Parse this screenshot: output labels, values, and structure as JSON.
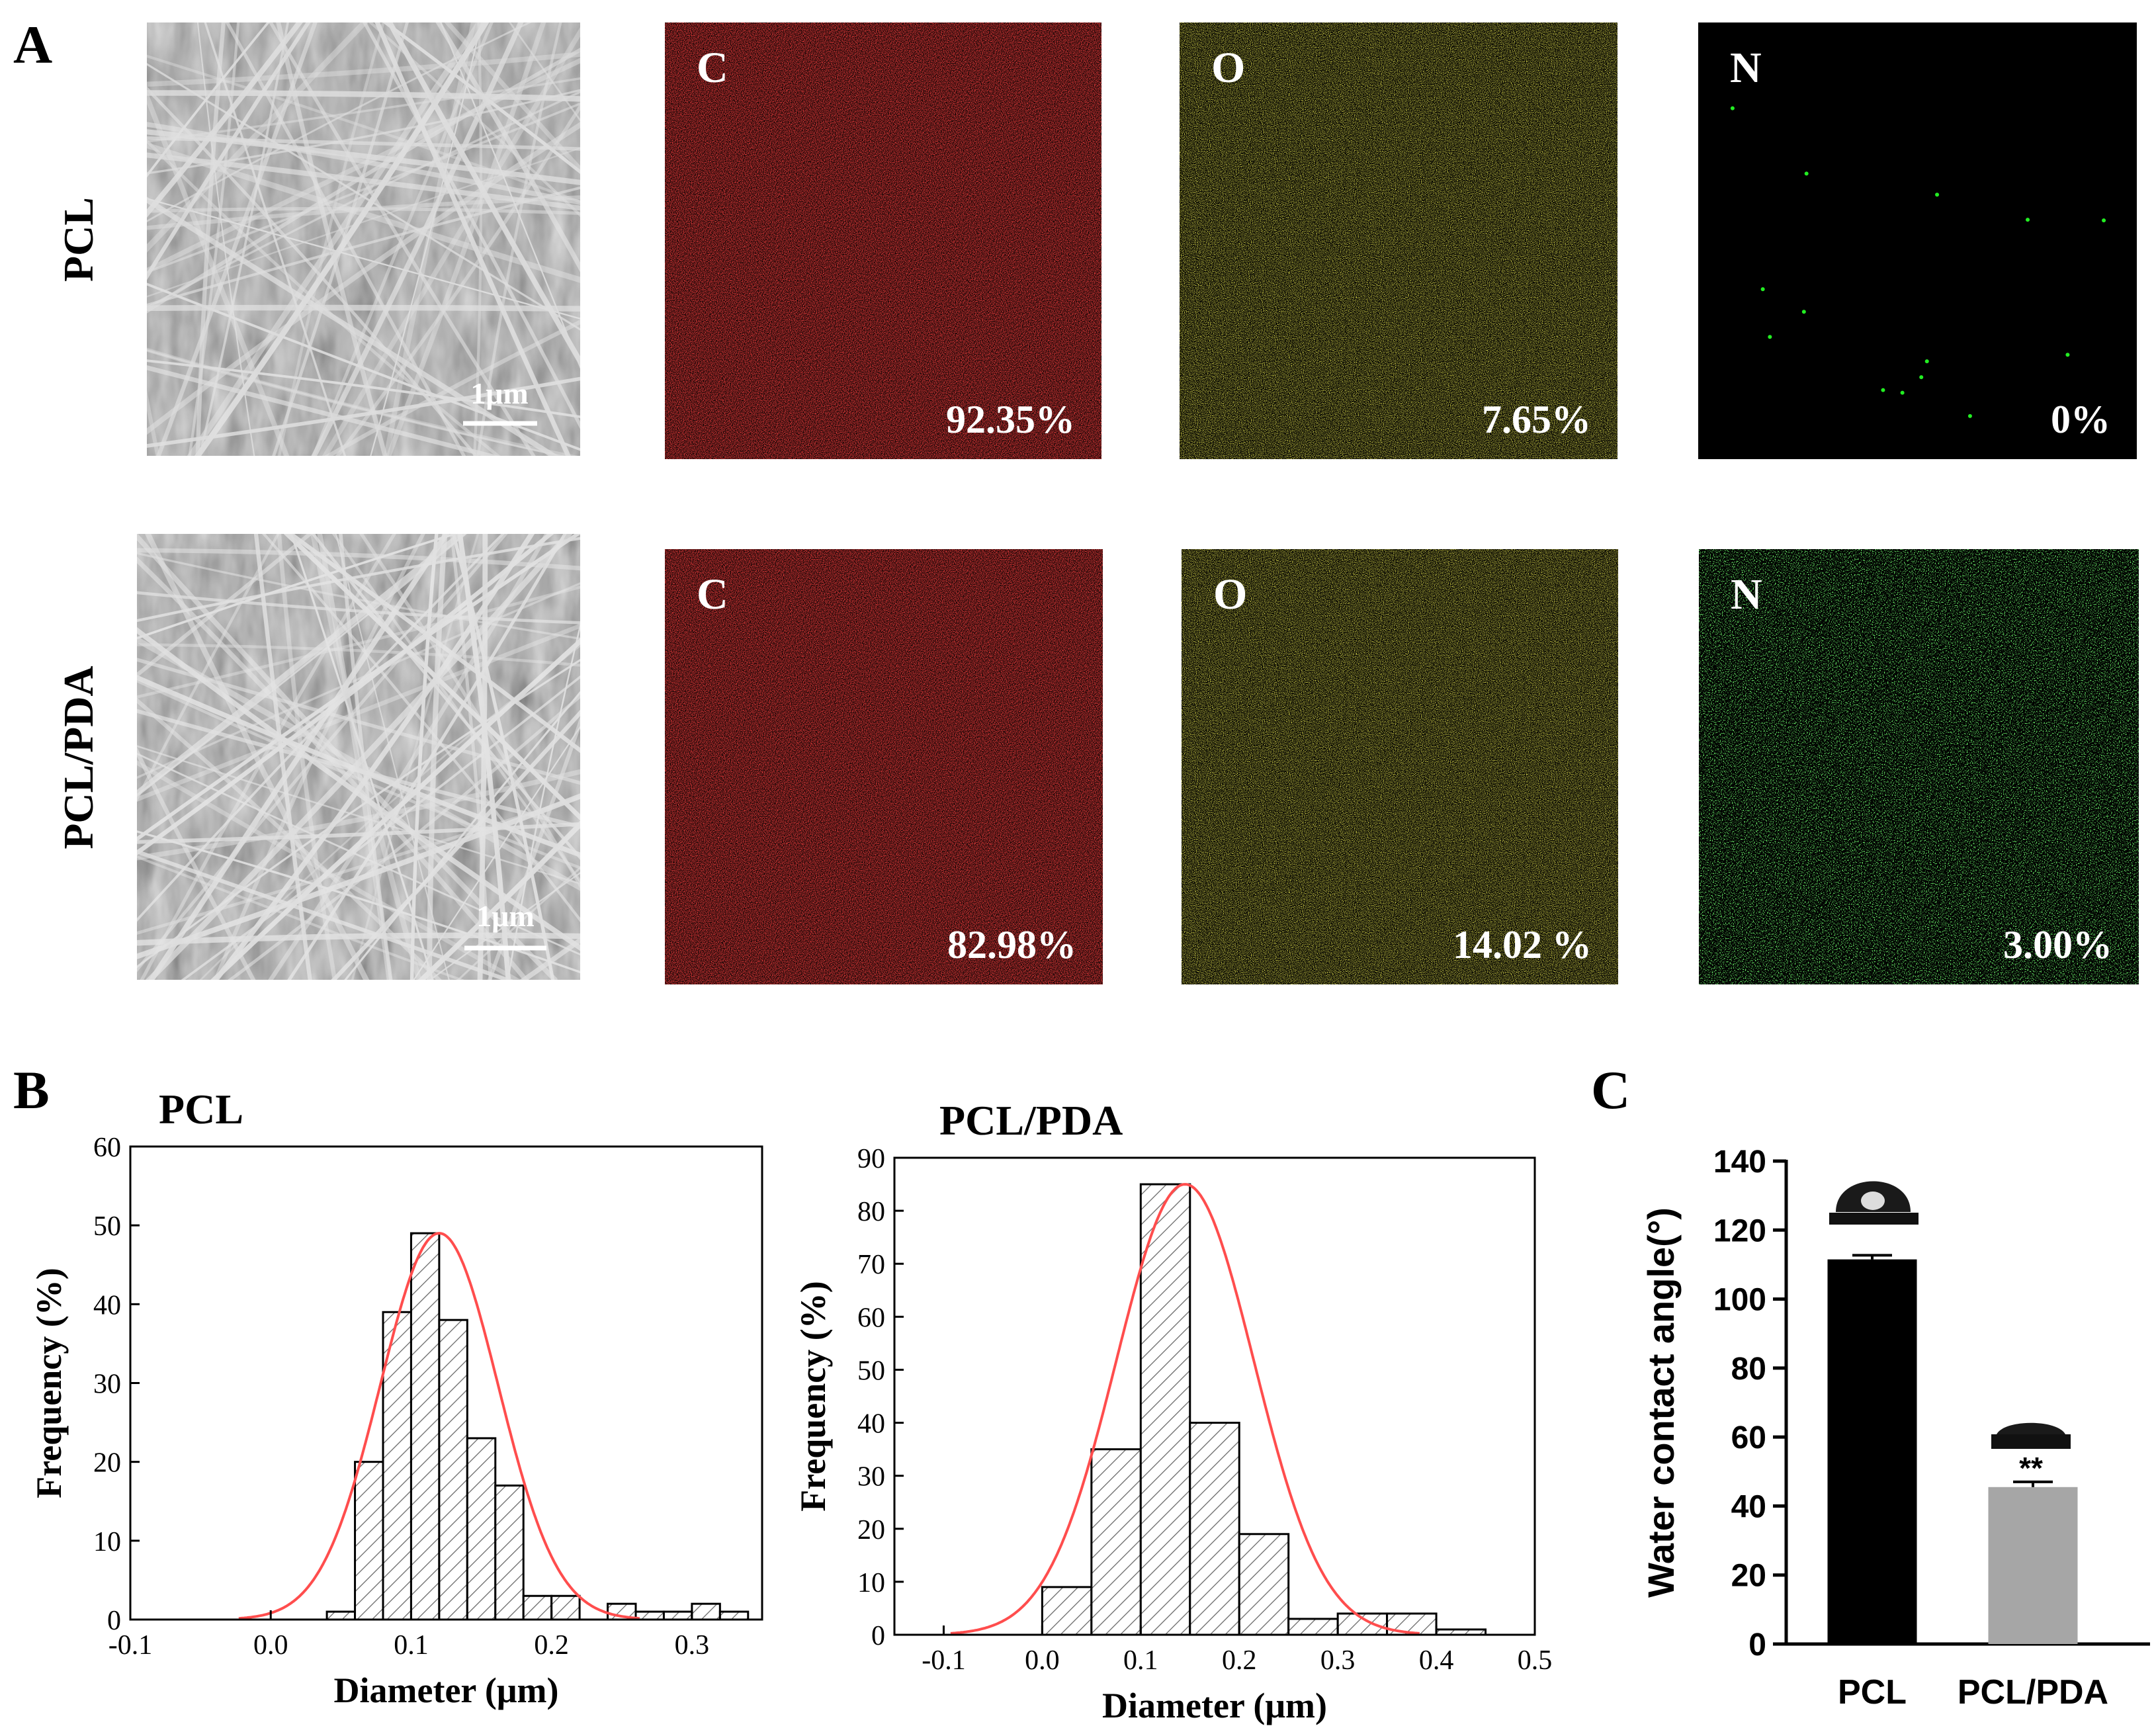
{
  "panel_labels": {
    "a": "A",
    "b": "B",
    "c": "C"
  },
  "panel_a": {
    "row_labels": [
      "PCL",
      "PCL/PDA"
    ],
    "scale_bar_label": "1μm",
    "maps": [
      {
        "element": "C",
        "value": "92.35%",
        "color": "#ff1a1a"
      },
      {
        "element": "O",
        "value": "7.65%",
        "color": "#ffff1a"
      },
      {
        "element": "N",
        "value": "0%",
        "color": "#22ee22"
      },
      {
        "element": "C",
        "value": "82.98%",
        "color": "#ff1a1a"
      },
      {
        "element": "O",
        "value": "14.02 %",
        "color": "#ffff1a"
      },
      {
        "element": "N",
        "value": "3.00%",
        "color": "#22ee22"
      }
    ]
  },
  "chart_data": [
    {
      "type": "bar",
      "title": "PCL",
      "xlabel": "Diameter (μm)",
      "ylabel": "Frequency (%)",
      "xlim": [
        -0.1,
        0.35
      ],
      "ylim": [
        0,
        60
      ],
      "xticks": [
        "-0.1",
        "0.0",
        "0.1",
        "0.2",
        "0.3"
      ],
      "yticks": [
        "0",
        "10",
        "20",
        "30",
        "40",
        "50",
        "60"
      ],
      "bin_width": 0.02,
      "bin_starts": [
        0.04,
        0.06,
        0.08,
        0.1,
        0.12,
        0.14,
        0.16,
        0.18,
        0.2,
        0.22,
        0.24,
        0.26,
        0.28,
        0.3,
        0.32
      ],
      "values": [
        1,
        20,
        39,
        49,
        38,
        23,
        17,
        3,
        3,
        0,
        2,
        1,
        1,
        2,
        1
      ],
      "fit_curve": {
        "type": "gaussian",
        "mean": 0.12,
        "sigma": 0.042,
        "peak": 49,
        "color": "#ff4d4d"
      }
    },
    {
      "type": "bar",
      "title": "PCL/PDA",
      "xlabel": "Diameter (μm)",
      "ylabel": "Frequency (%)",
      "xlim": [
        -0.15,
        0.5
      ],
      "ylim": [
        0,
        90
      ],
      "xticks": [
        "-0.1",
        "0.0",
        "0.1",
        "0.2",
        "0.3",
        "0.4",
        "0.5"
      ],
      "yticks": [
        "0",
        "10",
        "20",
        "30",
        "40",
        "50",
        "60",
        "70",
        "80",
        "90"
      ],
      "bin_width": 0.05,
      "bin_starts": [
        0.0,
        0.05,
        0.1,
        0.15,
        0.2,
        0.25,
        0.3,
        0.35,
        0.4
      ],
      "values": [
        9,
        35,
        85,
        40,
        19,
        3,
        4,
        4,
        1
      ],
      "fit_curve": {
        "type": "gaussian",
        "mean": 0.145,
        "sigma": 0.07,
        "peak": 85,
        "color": "#ff4d4d"
      }
    },
    {
      "type": "bar",
      "ylabel": "Water contact  angle(°)",
      "ylim": [
        0,
        140
      ],
      "yticks": [
        "0",
        "20",
        "40",
        "60",
        "80",
        "100",
        "120",
        "140"
      ],
      "categories": [
        "PCL",
        "PCL/PDA"
      ],
      "values": [
        111.5,
        45.5
      ],
      "errors": [
        1.2,
        1.5
      ],
      "colors": [
        "#000000",
        "#a6a6a6"
      ],
      "annotation": "**"
    }
  ]
}
